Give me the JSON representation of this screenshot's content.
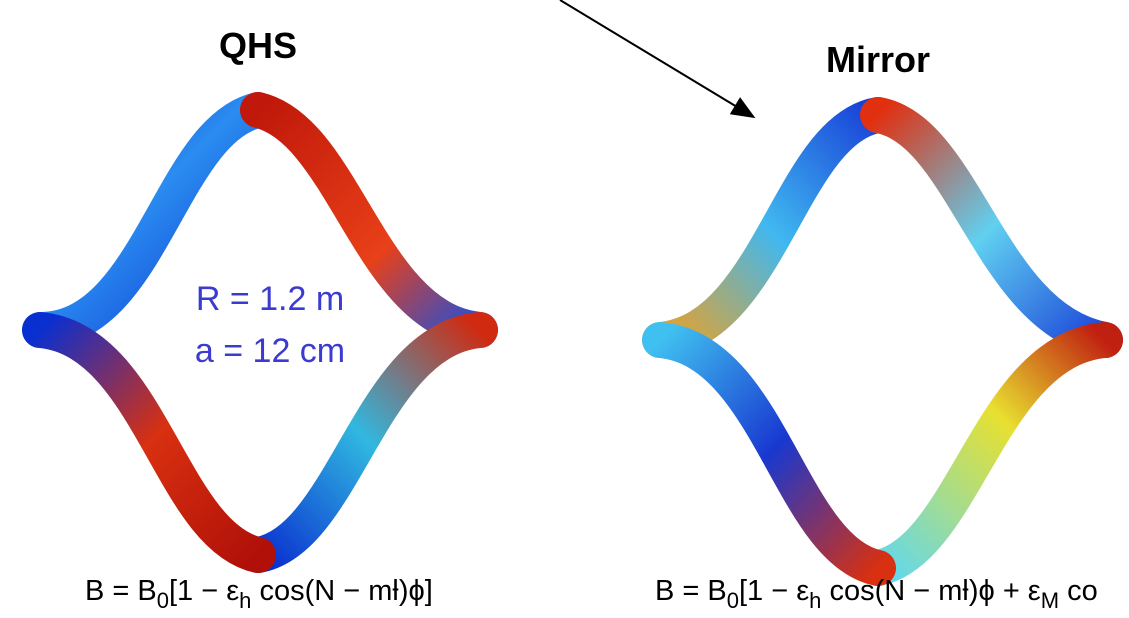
{
  "panels": [
    {
      "title": "QHS",
      "formula": [
        "B = B",
        "0",
        "[1 − ε",
        "h",
        " cos(N − mƚ)ϕ]"
      ]
    },
    {
      "title": "Mirror",
      "formula": [
        "B = B",
        "0",
        "[1 − ε",
        "h",
        " cos(N − mƚ)ϕ + ε",
        "M",
        " co"
      ]
    }
  ],
  "annotation": [
    "R = 1.2 m",
    "a = 12 cm"
  ]
}
